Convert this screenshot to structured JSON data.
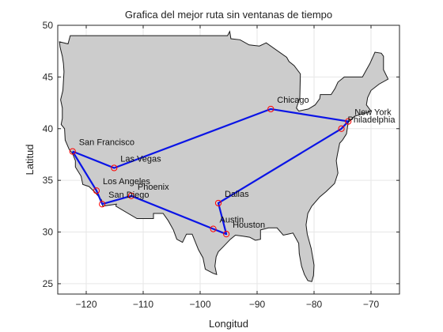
{
  "chart_data": {
    "type": "line",
    "title": "Grafica del mejor ruta sin ventanas de tiempo",
    "xlabel": "Longitud",
    "ylabel": "Latitud",
    "xlim": [
      -125,
      -65
    ],
    "ylim": [
      24,
      50
    ],
    "xticks": [
      -120,
      -110,
      -100,
      -90,
      -80,
      -70
    ],
    "yticks": [
      25,
      30,
      35,
      40,
      45,
      50
    ],
    "grid": true,
    "colors": {
      "land": "#cccccc",
      "border": "#1a1a1a",
      "route": "#0a14e6",
      "marker": "#ff0000",
      "grid": "#e6e6e6"
    },
    "cities": [
      {
        "name": "San Francisco",
        "x": -122.4,
        "y": 37.8
      },
      {
        "name": "Las Vegas",
        "x": -115.1,
        "y": 36.2
      },
      {
        "name": "Los Angeles",
        "x": -118.2,
        "y": 34.0
      },
      {
        "name": "San Diego",
        "x": -117.2,
        "y": 32.7
      },
      {
        "name": "Phoenix",
        "x": -112.1,
        "y": 33.5
      },
      {
        "name": "Dallas",
        "x": -96.8,
        "y": 32.8
      },
      {
        "name": "Austin",
        "x": -97.7,
        "y": 30.3
      },
      {
        "name": "Houston",
        "x": -95.4,
        "y": 29.8
      },
      {
        "name": "Chicago",
        "x": -87.6,
        "y": 41.9
      },
      {
        "name": "New York",
        "x": -74.0,
        "y": 40.7
      },
      {
        "name": "Philadelphia",
        "x": -75.2,
        "y": 40.0
      }
    ],
    "series": [
      {
        "x": [
          -122.4,
          -115.1,
          -87.6,
          -74.0,
          -75.2,
          -96.8,
          -95.4,
          -97.7,
          -112.1,
          -117.2,
          -118.2,
          -122.4
        ],
        "y": [
          37.8,
          36.2,
          41.9,
          40.7,
          40.0,
          32.8,
          29.8,
          30.3,
          33.5,
          32.7,
          34.0,
          37.8
        ]
      }
    ]
  }
}
